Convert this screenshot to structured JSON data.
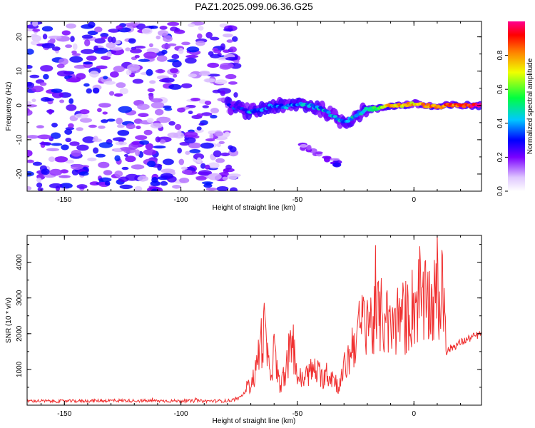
{
  "title": "PAZ1.2025.099.06.36.G25",
  "chart_data": [
    {
      "type": "heatmap",
      "xlabel": "Height of straight line (km)",
      "ylabel": "Frequency (Hz)",
      "xlim": [
        -166,
        29
      ],
      "ylim": [
        -25,
        24.5
      ],
      "xticks": [
        -150,
        -100,
        -50,
        0
      ],
      "yticks": [
        -20,
        -10,
        0,
        10,
        20
      ],
      "grid": false,
      "colorbar": {
        "label": "Normalized spectral amplitude",
        "range": [
          0,
          1
        ],
        "ticks": [
          0.0,
          0.2,
          0.4,
          0.6,
          0.8
        ]
      },
      "noise_region": {
        "x_range": [
          -166,
          -76
        ],
        "level": 0.2
      },
      "signal_ridge": {
        "x": [
          -80,
          -75,
          -70,
          -65,
          -60,
          -55,
          -50,
          -45,
          -40,
          -35,
          -30,
          -25,
          -20,
          -15,
          -10,
          -5,
          0,
          5,
          10,
          15,
          20,
          25,
          29
        ],
        "frequency": [
          0,
          -1,
          -2,
          -1,
          0,
          -0.5,
          0.5,
          0,
          -1,
          -3,
          -5,
          -3,
          -1,
          -1,
          0,
          0,
          0.5,
          0,
          -0.5,
          0,
          0,
          0,
          0
        ],
        "amplitude": [
          0.15,
          0.3,
          0.35,
          0.3,
          0.3,
          0.3,
          0.35,
          0.35,
          0.35,
          0.4,
          0.35,
          0.4,
          0.45,
          0.55,
          0.75,
          0.7,
          0.7,
          0.75,
          0.8,
          0.8,
          0.85,
          0.9,
          0.9
        ]
      },
      "secondary_feature": {
        "x_range": [
          -48,
          -32
        ],
        "frequency_range": [
          -17,
          -12
        ],
        "amplitude": 0.2
      }
    },
    {
      "type": "line",
      "xlabel": "Height of straight line (km)",
      "ylabel": "SNR (10 * v/v)",
      "xlim": [
        -166,
        29
      ],
      "ylim": [
        0,
        4750
      ],
      "xticks": [
        -150,
        -100,
        -50,
        0
      ],
      "yticks": [
        1000,
        2000,
        3000,
        4000
      ],
      "grid": false,
      "series": [
        {
          "color": "#f03030",
          "x": [
            -166,
            -150,
            -130,
            -110,
            -90,
            -80,
            -75,
            -72,
            -70,
            -68,
            -66,
            -64,
            -62,
            -60,
            -58,
            -56,
            -54,
            -52,
            -50,
            -48,
            -45,
            -42,
            -40,
            -38,
            -35,
            -32,
            -30,
            -28,
            -26,
            -24,
            -22,
            -20,
            -18,
            -15,
            -12,
            -10,
            -8,
            -6,
            -4,
            -2,
            0,
            2,
            4,
            6,
            8,
            10,
            12,
            13,
            14,
            16,
            20,
            25,
            29
          ],
          "y": [
            120,
            110,
            130,
            120,
            115,
            120,
            180,
            400,
            600,
            900,
            1700,
            2100,
            800,
            1500,
            600,
            700,
            1200,
            1800,
            800,
            700,
            900,
            1000,
            700,
            900,
            800,
            500,
            1000,
            1300,
            1800,
            2000,
            2300,
            2600,
            2200,
            2500,
            2400,
            2000,
            2300,
            2500,
            2400,
            2600,
            2800,
            3000,
            2700,
            2900,
            2800,
            3000,
            2900,
            3200,
            1500,
            1600,
            1750,
            1900,
            2000
          ]
        }
      ]
    }
  ]
}
